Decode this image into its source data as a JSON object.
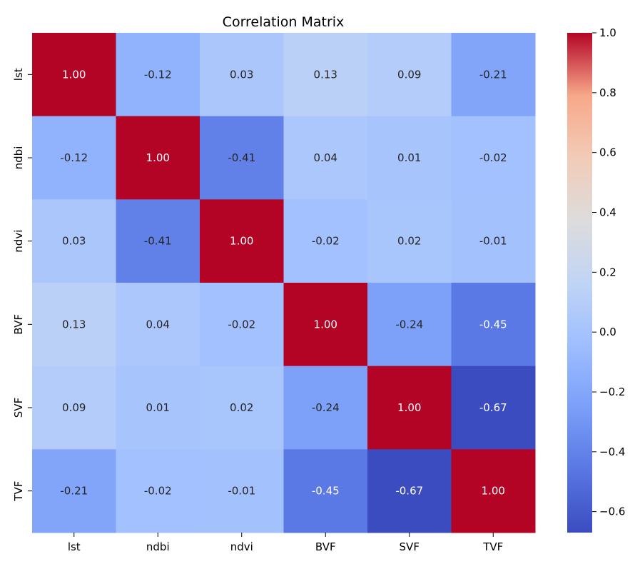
{
  "chart_data": {
    "type": "heatmap",
    "title": "Correlation Matrix",
    "xlabel": "",
    "ylabel": "",
    "x_categories": [
      "lst",
      "ndbi",
      "ndvi",
      "BVF",
      "SVF",
      "TVF"
    ],
    "y_categories": [
      "lst",
      "ndbi",
      "ndvi",
      "BVF",
      "SVF",
      "TVF"
    ],
    "matrix": [
      [
        1.0,
        -0.12,
        0.03,
        0.13,
        0.09,
        -0.21
      ],
      [
        -0.12,
        1.0,
        -0.41,
        0.04,
        0.01,
        -0.02
      ],
      [
        0.03,
        -0.41,
        1.0,
        -0.02,
        0.02,
        -0.01
      ],
      [
        0.13,
        0.04,
        -0.02,
        1.0,
        -0.24,
        -0.45
      ],
      [
        0.09,
        0.01,
        0.02,
        -0.24,
        1.0,
        -0.67
      ],
      [
        -0.21,
        -0.02,
        -0.01,
        -0.45,
        -0.67,
        1.0
      ]
    ],
    "annotation_format": "0.00",
    "colormap": "coolwarm",
    "value_range": [
      -0.67,
      1.0
    ],
    "colorbar_ticks": [
      "1.0",
      "0.8",
      "0.6",
      "0.4",
      "0.2",
      "0.0",
      "−0.2",
      "−0.4",
      "−0.6"
    ],
    "colorbar_tick_values": [
      1.0,
      0.8,
      0.6,
      0.4,
      0.2,
      0.0,
      -0.2,
      -0.4,
      -0.6
    ],
    "grid": false,
    "legend": "colorbar-right"
  }
}
